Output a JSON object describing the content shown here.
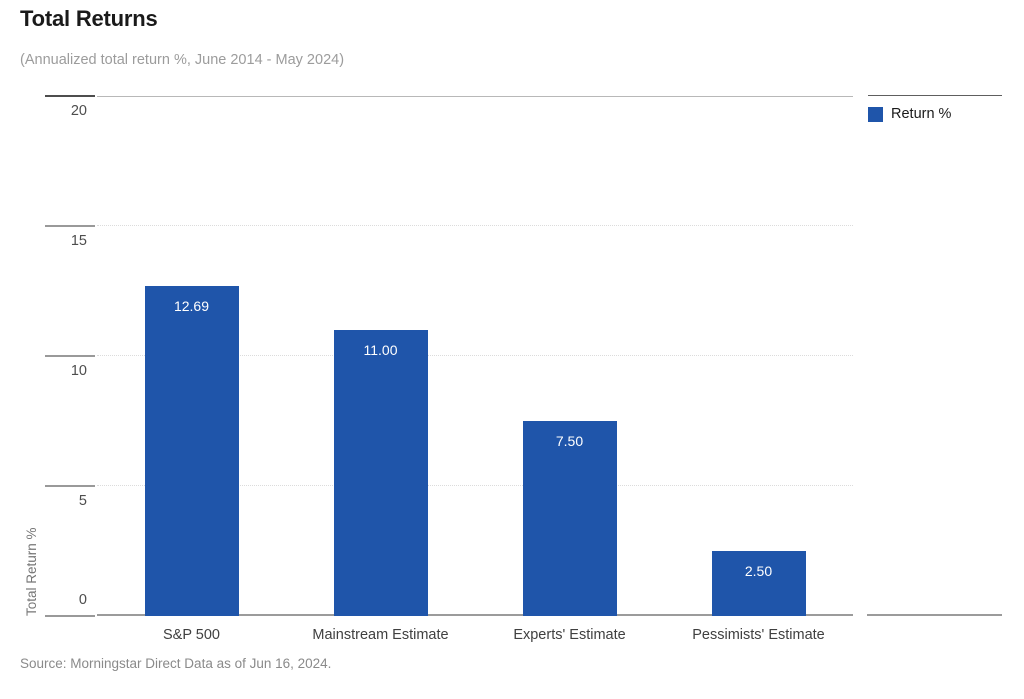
{
  "header": {
    "title": "Total Returns",
    "subtitle": "(Annualized total return %, June 2014 - May 2024)"
  },
  "legend": {
    "label": "Return %",
    "swatch_color": "#1f55aa"
  },
  "source": "Source: Morningstar Direct Data as of Jun 16, 2024.",
  "colors": {
    "bar": "#1f55aa",
    "bar_value_label": "#ffffff",
    "axis_line": "#9b9b9b",
    "top_border": "#b8b8b8",
    "dotted_grid": "#dcdcdc",
    "title_text": "#1a1a1a",
    "muted_text": "#9c9c9c"
  },
  "chart_data": {
    "type": "bar",
    "title": "Total Returns",
    "subtitle": "(Annualized total return %, June 2014 - May 2024)",
    "categories": [
      "S&P 500",
      "Mainstream Estimate",
      "Experts' Estimate",
      "Pessimists' Estimate"
    ],
    "series": [
      {
        "name": "Return %",
        "values": [
          12.69,
          11.0,
          7.5,
          2.5
        ],
        "labels": [
          "12.69",
          "11.00",
          "7.50",
          "2.50"
        ],
        "color": "#1f55aa"
      }
    ],
    "xlabel": "",
    "ylabel": "Total Return %",
    "ylim": [
      0,
      20
    ],
    "yticks": [
      0,
      5,
      10,
      15,
      20
    ],
    "grid": "horizontal dotted gridlines at interior ticks; solid top border; solid bottom axis",
    "legend_position": "top-right",
    "value_labels": "inside bar top, white"
  }
}
